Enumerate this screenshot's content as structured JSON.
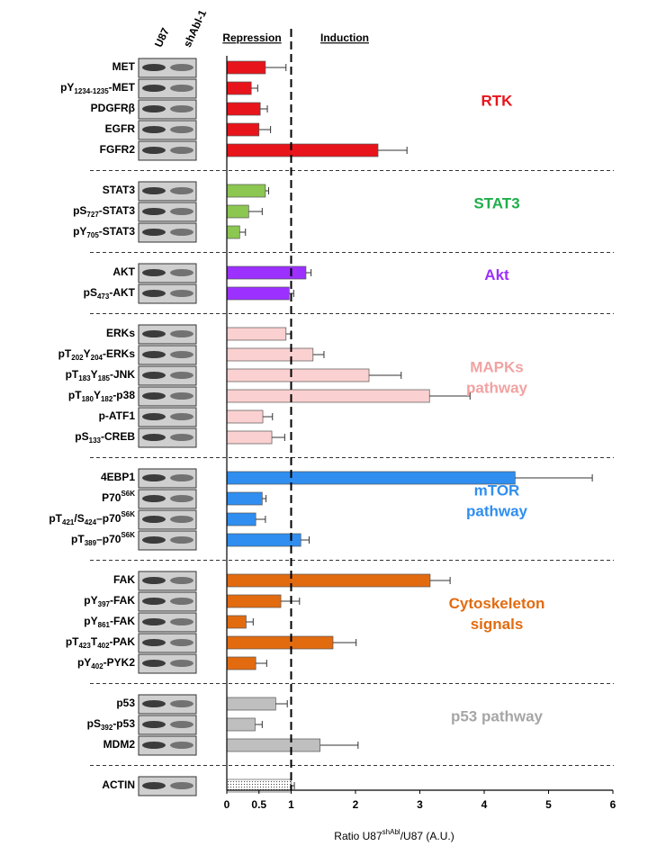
{
  "chart_data": {
    "type": "hbar",
    "lanes": [
      "U87",
      "shAbl-1"
    ],
    "headers": [
      "Repression",
      "Induction"
    ],
    "xlabel": [
      "Ratio U87",
      {
        "sup": "shAbl"
      },
      "/U87 (A.U.)"
    ],
    "xlim": [
      0,
      6
    ],
    "xticks": [
      0,
      0.5,
      1,
      2,
      3,
      4,
      5,
      6
    ],
    "reference_line": 1,
    "groups": [
      {
        "name": [
          "RTK"
        ],
        "color": "#e8141b",
        "label_color": "#e8141b",
        "rows": [
          {
            "label": [
              "MET"
            ],
            "value": 0.6,
            "error": 0.32
          },
          {
            "label": [
              "pY",
              {
                "sub": "1234-1235"
              },
              "-MET"
            ],
            "value": 0.38,
            "error": 0.1
          },
          {
            "label": [
              "PDGFRβ"
            ],
            "value": 0.52,
            "error": 0.11
          },
          {
            "label": [
              "EGFR"
            ],
            "value": 0.5,
            "error": 0.18
          },
          {
            "label": [
              "FGFR2"
            ],
            "value": 2.35,
            "error": 0.45
          }
        ]
      },
      {
        "name": [
          "STAT3"
        ],
        "color": "#8cc751",
        "label_color": "#1fae4a",
        "rows": [
          {
            "label": [
              "STAT3"
            ],
            "value": 0.6,
            "error": 0.05
          },
          {
            "label": [
              "pS",
              {
                "sub": "727"
              },
              "-STAT3"
            ],
            "value": 0.34,
            "error": 0.21
          },
          {
            "label": [
              "pY",
              {
                "sub": "705"
              },
              "-STAT3"
            ],
            "value": 0.2,
            "error": 0.09
          }
        ]
      },
      {
        "name": [
          "Akt"
        ],
        "color": "#9b30ff",
        "label_color": "#9b30ff",
        "rows": [
          {
            "label": [
              "AKT"
            ],
            "value": 1.23,
            "error": 0.08
          },
          {
            "label": [
              "pS",
              {
                "sub": "473"
              },
              "-AKT"
            ],
            "value": 0.97,
            "error": 0.07
          }
        ]
      },
      {
        "name": [
          "MAPKs",
          "pathway"
        ],
        "color": "#fbd0d0",
        "label_color": "#f2a2a2",
        "rows": [
          {
            "label": [
              "ERKs"
            ],
            "value": 0.92,
            "error": 0.08
          },
          {
            "label": [
              "pT",
              {
                "sub": "202"
              },
              "Y",
              {
                "sub": "204"
              },
              "-ERKs"
            ],
            "value": 1.34,
            "error": 0.17
          },
          {
            "label": [
              "pT",
              {
                "sub": "183"
              },
              "Y",
              {
                "sub": "185"
              },
              "-JNK"
            ],
            "value": 2.21,
            "error": 0.5
          },
          {
            "label": [
              "pT",
              {
                "sub": "180"
              },
              "Y",
              {
                "sub": "182"
              },
              "-p38"
            ],
            "value": 3.15,
            "error": 0.63
          },
          {
            "label": [
              "p-ATF1"
            ],
            "value": 0.56,
            "error": 0.15
          },
          {
            "label": [
              "pS",
              {
                "sub": "133"
              },
              "-CREB"
            ],
            "value": 0.7,
            "error": 0.2
          }
        ]
      },
      {
        "name": [
          "mTOR",
          "pathway"
        ],
        "color": "#2f8ef0",
        "label_color": "#2f8ef0",
        "rows": [
          {
            "label": [
              "4EBP1"
            ],
            "value": 4.48,
            "error": 1.2
          },
          {
            "label": [
              "P70",
              {
                "sup": "S6K"
              }
            ],
            "value": 0.55,
            "error": 0.06
          },
          {
            "label": [
              "pT",
              {
                "sub": "421"
              },
              "/S",
              {
                "sub": "424"
              },
              "–p70",
              {
                "sup": "S6K"
              }
            ],
            "value": 0.45,
            "error": 0.15
          },
          {
            "label": [
              "pT",
              {
                "sub": "389"
              },
              "–p70",
              {
                "sup": "S6K"
              }
            ],
            "value": 1.15,
            "error": 0.13
          }
        ]
      },
      {
        "name": [
          "Cytoskeleton",
          "signals"
        ],
        "color": "#e26b10",
        "label_color": "#e26b10",
        "rows": [
          {
            "label": [
              "FAK"
            ],
            "value": 3.16,
            "error": 0.31
          },
          {
            "label": [
              "pY",
              {
                "sub": "397"
              },
              "-FAK"
            ],
            "value": 0.84,
            "error": 0.29
          },
          {
            "label": [
              "pY",
              {
                "sub": "861"
              },
              "-FAK"
            ],
            "value": 0.3,
            "error": 0.11
          },
          {
            "label": [
              "pT",
              {
                "sub": "423"
              },
              "T",
              {
                "sub": "402"
              },
              "-PAK"
            ],
            "value": 1.65,
            "error": 0.36
          },
          {
            "label": [
              "pY",
              {
                "sub": "402"
              },
              "-PYK2"
            ],
            "value": 0.45,
            "error": 0.17
          }
        ]
      },
      {
        "name": [
          "p53 pathway"
        ],
        "color": "#bfbfbf",
        "label_color": "#a6a6a6",
        "rows": [
          {
            "label": [
              "p53"
            ],
            "value": 0.76,
            "error": 0.18
          },
          {
            "label": [
              "pS",
              {
                "sub": "392"
              },
              "-p53"
            ],
            "value": 0.44,
            "error": 0.11
          },
          {
            "label": [
              "MDM2"
            ],
            "value": 1.45,
            "error": 0.59
          }
        ]
      },
      {
        "color": "#ffffff",
        "pattern": "dotted",
        "rows": [
          {
            "label": [
              "ACTIN"
            ],
            "value": 1.0,
            "error": 0.05
          }
        ]
      }
    ]
  }
}
